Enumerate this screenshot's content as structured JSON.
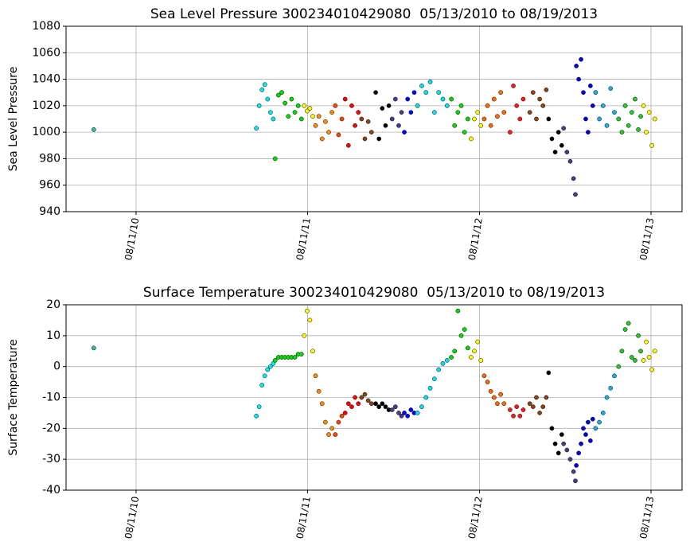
{
  "chart_data": [
    {
      "type": "scatter",
      "title": "Sea Level Pressure 300234010429080  05/13/2010 to 08/19/2013",
      "y_label": "Sea Level Pressure",
      "xlim": [
        "2010-03-15",
        "2013-10-16"
      ],
      "xticks": [
        {
          "value": "2010-08-11",
          "label": "08/11/10"
        },
        {
          "value": "2011-08-11",
          "label": "08/11/11"
        },
        {
          "value": "2012-08-11",
          "label": "08/11/12"
        },
        {
          "value": "2013-08-11",
          "label": "08/11/13"
        }
      ],
      "ylim": [
        940,
        1080
      ],
      "yticks": [
        940,
        960,
        980,
        1000,
        1020,
        1040,
        1060,
        1080
      ],
      "grid": true,
      "series": [
        {
          "color": "#3cb4a0",
          "x": [
            "2010-05-13"
          ],
          "values": [
            1002
          ]
        },
        {
          "color": "#00eef0",
          "x": [
            "2011-04-24",
            "2011-04-30",
            "2011-05-06",
            "2011-05-12",
            "2011-05-18",
            "2011-05-24",
            "2011-05-30"
          ],
          "values": [
            1003,
            1020,
            1032,
            1036,
            1025,
            1015,
            1010
          ]
        },
        {
          "color": "#00dd00",
          "x": [
            "2011-06-03",
            "2011-06-10",
            "2011-06-17",
            "2011-06-24",
            "2011-07-01",
            "2011-07-08",
            "2011-07-15",
            "2011-07-22",
            "2011-07-29"
          ],
          "values": [
            980,
            1028,
            1030,
            1022,
            1012,
            1025,
            1015,
            1020,
            1010
          ]
        },
        {
          "color": "#ffff00",
          "x": [
            "2011-08-04",
            "2011-08-10",
            "2011-08-16",
            "2011-08-22"
          ],
          "values": [
            1020,
            1016,
            1018,
            1012
          ]
        },
        {
          "color": "#ff8c00",
          "x": [
            "2011-08-28",
            "2011-09-04",
            "2011-09-11",
            "2011-09-18",
            "2011-09-25",
            "2011-10-02"
          ],
          "values": [
            1005,
            1012,
            995,
            1008,
            1000,
            1015
          ]
        },
        {
          "color": "#ff4500",
          "x": [
            "2011-10-09",
            "2011-10-16",
            "2011-10-23"
          ],
          "values": [
            1020,
            998,
            1010
          ]
        },
        {
          "color": "#ff0000",
          "x": [
            "2011-10-30",
            "2011-11-06",
            "2011-11-13",
            "2011-11-20",
            "2011-11-27"
          ],
          "values": [
            1025,
            990,
            1020,
            1005,
            1015
          ]
        },
        {
          "color": "#8b4513",
          "x": [
            "2011-12-04",
            "2011-12-11",
            "2011-12-18",
            "2011-12-25"
          ],
          "values": [
            1010,
            995,
            1008,
            1000
          ]
        },
        {
          "color": "#000000",
          "x": [
            "2012-01-03",
            "2012-01-10",
            "2012-01-17",
            "2012-01-24",
            "2012-01-31"
          ],
          "values": [
            1030,
            995,
            1018,
            1005,
            1020
          ]
        },
        {
          "color": "#483d8b",
          "x": [
            "2012-02-07",
            "2012-02-14",
            "2012-02-21",
            "2012-02-27"
          ],
          "values": [
            1010,
            1025,
            1005,
            1015
          ]
        },
        {
          "color": "#0000ff",
          "x": [
            "2012-03-04",
            "2012-03-11",
            "2012-03-18",
            "2012-03-25"
          ],
          "values": [
            1000,
            1025,
            1015,
            1030
          ]
        },
        {
          "color": "#00e5ee",
          "x": [
            "2012-04-01",
            "2012-04-10",
            "2012-04-19",
            "2012-04-28",
            "2012-05-07",
            "2012-05-16",
            "2012-05-25",
            "2012-06-03"
          ],
          "values": [
            1020,
            1035,
            1030,
            1038,
            1015,
            1030,
            1025,
            1020
          ]
        },
        {
          "color": "#00dd00",
          "x": [
            "2012-06-12",
            "2012-06-19",
            "2012-06-26",
            "2012-07-03",
            "2012-07-10",
            "2012-07-17"
          ],
          "values": [
            1025,
            1005,
            1015,
            1020,
            1000,
            1010
          ]
        },
        {
          "color": "#ffff00",
          "x": [
            "2012-07-24",
            "2012-07-31",
            "2012-08-07",
            "2012-08-14"
          ],
          "values": [
            995,
            1010,
            1015,
            1005
          ]
        },
        {
          "color": "#ff6a00",
          "x": [
            "2012-08-21",
            "2012-08-28",
            "2012-09-04",
            "2012-09-11",
            "2012-09-18",
            "2012-09-25",
            "2012-10-02"
          ],
          "values": [
            1010,
            1020,
            1005,
            1025,
            1012,
            1030,
            1015
          ]
        },
        {
          "color": "#ff1a1a",
          "x": [
            "2012-10-15",
            "2012-10-22",
            "2012-10-29",
            "2012-11-05",
            "2012-11-12"
          ],
          "values": [
            1000,
            1035,
            1020,
            1010,
            1025
          ]
        },
        {
          "color": "#8b4513",
          "x": [
            "2012-11-26",
            "2012-12-03",
            "2012-12-10",
            "2012-12-17",
            "2012-12-24",
            "2012-12-31"
          ],
          "values": [
            1015,
            1030,
            1010,
            1025,
            1020,
            1032
          ]
        },
        {
          "color": "#000000",
          "x": [
            "2013-01-05",
            "2013-01-12",
            "2013-01-19",
            "2013-01-26",
            "2013-02-02"
          ],
          "values": [
            1010,
            995,
            985,
            1000,
            990
          ]
        },
        {
          "color": "#483d8b",
          "x": [
            "2013-02-06",
            "2013-02-13",
            "2013-02-20",
            "2013-02-27",
            "2013-03-03"
          ],
          "values": [
            1003,
            985,
            978,
            965,
            953
          ]
        },
        {
          "color": "#0000dd",
          "x": [
            "2013-03-05",
            "2013-03-10",
            "2013-03-15",
            "2013-03-20",
            "2013-03-25",
            "2013-03-30",
            "2013-04-04",
            "2013-04-09"
          ],
          "values": [
            1050,
            1040,
            1055,
            1030,
            1010,
            1000,
            1035,
            1020
          ]
        },
        {
          "color": "#1ab0e0",
          "x": [
            "2013-04-15",
            "2013-04-23",
            "2013-05-01",
            "2013-05-09",
            "2013-05-17",
            "2013-05-25"
          ],
          "values": [
            1030,
            1010,
            1020,
            1005,
            1033,
            1015
          ]
        },
        {
          "color": "#22cc22",
          "x": [
            "2013-06-03",
            "2013-06-10",
            "2013-06-17",
            "2013-06-24",
            "2013-07-01",
            "2013-07-08",
            "2013-07-15",
            "2013-07-20"
          ],
          "values": [
            1010,
            1000,
            1020,
            1005,
            1015,
            1025,
            1002,
            1012
          ]
        },
        {
          "color": "#ffff00",
          "x": [
            "2013-07-26",
            "2013-08-01",
            "2013-08-07",
            "2013-08-13",
            "2013-08-19"
          ],
          "values": [
            1020,
            1000,
            1015,
            990,
            1010
          ]
        }
      ]
    },
    {
      "type": "scatter",
      "title": "Surface Temperature 300234010429080  05/13/2010 to 08/19/2013",
      "y_label": "Surface Temperature",
      "xlim": [
        "2010-03-15",
        "2013-10-16"
      ],
      "xticks": [
        {
          "value": "2010-08-11",
          "label": "08/11/10"
        },
        {
          "value": "2011-08-11",
          "label": "08/11/11"
        },
        {
          "value": "2012-08-11",
          "label": "08/11/12"
        },
        {
          "value": "2013-08-11",
          "label": "08/11/13"
        }
      ],
      "ylim": [
        -40,
        20
      ],
      "yticks": [
        -40,
        -30,
        -20,
        -10,
        0,
        10,
        20
      ],
      "grid": true,
      "series": [
        {
          "color": "#3cb4a0",
          "x": [
            "2010-05-13"
          ],
          "values": [
            6
          ]
        },
        {
          "color": "#00eef0",
          "x": [
            "2011-04-24",
            "2011-04-30",
            "2011-05-06",
            "2011-05-12",
            "2011-05-18",
            "2011-05-24",
            "2011-05-30"
          ],
          "values": [
            -16,
            -13,
            -6,
            -3,
            -1,
            0,
            1
          ]
        },
        {
          "color": "#00dd00",
          "x": [
            "2011-06-03",
            "2011-06-10",
            "2011-06-17",
            "2011-06-24",
            "2011-07-01",
            "2011-07-08",
            "2011-07-15",
            "2011-07-22",
            "2011-07-29"
          ],
          "values": [
            2,
            3,
            3,
            3,
            3,
            3,
            3,
            4,
            4
          ]
        },
        {
          "color": "#ffff00",
          "x": [
            "2011-08-04",
            "2011-08-10",
            "2011-08-16",
            "2011-08-22"
          ],
          "values": [
            10,
            18,
            15,
            5
          ]
        },
        {
          "color": "#ff8c00",
          "x": [
            "2011-08-28",
            "2011-09-04",
            "2011-09-11",
            "2011-09-18",
            "2011-09-25",
            "2011-10-02"
          ],
          "values": [
            -3,
            -8,
            -12,
            -18,
            -22,
            -20
          ]
        },
        {
          "color": "#ff4500",
          "x": [
            "2011-10-09",
            "2011-10-16",
            "2011-10-23"
          ],
          "values": [
            -22,
            -18,
            -16
          ]
        },
        {
          "color": "#ff0000",
          "x": [
            "2011-10-30",
            "2011-11-06",
            "2011-11-13",
            "2011-11-20",
            "2011-11-27"
          ],
          "values": [
            -15,
            -12,
            -13,
            -10,
            -12
          ]
        },
        {
          "color": "#8b4513",
          "x": [
            "2011-12-04",
            "2011-12-11",
            "2011-12-18",
            "2011-12-25"
          ],
          "values": [
            -10,
            -9,
            -11,
            -12
          ]
        },
        {
          "color": "#000000",
          "x": [
            "2012-01-03",
            "2012-01-10",
            "2012-01-17",
            "2012-01-24",
            "2012-01-31"
          ],
          "values": [
            -12,
            -13,
            -12,
            -13,
            -14
          ]
        },
        {
          "color": "#483d8b",
          "x": [
            "2012-02-07",
            "2012-02-14",
            "2012-02-21",
            "2012-02-27"
          ],
          "values": [
            -14,
            -13,
            -15,
            -16
          ]
        },
        {
          "color": "#0000ff",
          "x": [
            "2012-03-04",
            "2012-03-11",
            "2012-03-18",
            "2012-03-25"
          ],
          "values": [
            -15,
            -16,
            -14,
            -15
          ]
        },
        {
          "color": "#00e5ee",
          "x": [
            "2012-04-01",
            "2012-04-10",
            "2012-04-19",
            "2012-04-28",
            "2012-05-07",
            "2012-05-16",
            "2012-05-25",
            "2012-06-03"
          ],
          "values": [
            -15,
            -13,
            -10,
            -7,
            -4,
            -1,
            1,
            2
          ]
        },
        {
          "color": "#00dd00",
          "x": [
            "2012-06-12",
            "2012-06-19",
            "2012-06-26",
            "2012-07-03",
            "2012-07-10",
            "2012-07-17"
          ],
          "values": [
            3,
            5,
            18,
            10,
            12,
            6
          ]
        },
        {
          "color": "#ffff00",
          "x": [
            "2012-07-24",
            "2012-07-31",
            "2012-08-07",
            "2012-08-14"
          ],
          "values": [
            3,
            5,
            8,
            2
          ]
        },
        {
          "color": "#ff6a00",
          "x": [
            "2012-08-21",
            "2012-08-28",
            "2012-09-04",
            "2012-09-11",
            "2012-09-18",
            "2012-09-25",
            "2012-10-02"
          ],
          "values": [
            -3,
            -5,
            -8,
            -10,
            -12,
            -9,
            -12
          ]
        },
        {
          "color": "#ff1a1a",
          "x": [
            "2012-10-15",
            "2012-10-22",
            "2012-10-29",
            "2012-11-05",
            "2012-11-12"
          ],
          "values": [
            -14,
            -16,
            -13,
            -16,
            -14
          ]
        },
        {
          "color": "#8b4513",
          "x": [
            "2012-11-26",
            "2012-12-03",
            "2012-12-10",
            "2012-12-17",
            "2012-12-24",
            "2012-12-31"
          ],
          "values": [
            -12,
            -13,
            -10,
            -15,
            -13,
            -10
          ]
        },
        {
          "color": "#000000",
          "x": [
            "2013-01-05",
            "2013-01-12",
            "2013-01-19",
            "2013-01-26",
            "2013-02-02"
          ],
          "values": [
            -2,
            -20,
            -25,
            -28,
            -22
          ]
        },
        {
          "color": "#483d8b",
          "x": [
            "2013-02-06",
            "2013-02-13",
            "2013-02-20",
            "2013-02-27",
            "2013-03-03"
          ],
          "values": [
            -25,
            -27,
            -30,
            -34,
            -37
          ]
        },
        {
          "color": "#0000dd",
          "x": [
            "2013-03-05",
            "2013-03-10",
            "2013-03-15",
            "2013-03-20",
            "2013-03-25",
            "2013-03-30",
            "2013-04-04",
            "2013-04-09"
          ],
          "values": [
            -32,
            -28,
            -25,
            -20,
            -22,
            -18,
            -24,
            -17
          ]
        },
        {
          "color": "#1ab0e0",
          "x": [
            "2013-04-15",
            "2013-04-23",
            "2013-05-01",
            "2013-05-09",
            "2013-05-17",
            "2013-05-25"
          ],
          "values": [
            -20,
            -18,
            -15,
            -10,
            -7,
            -3
          ]
        },
        {
          "color": "#22cc22",
          "x": [
            "2013-06-03",
            "2013-06-10",
            "2013-06-17",
            "2013-06-24",
            "2013-07-01",
            "2013-07-08",
            "2013-07-15",
            "2013-07-20"
          ],
          "values": [
            0,
            5,
            12,
            14,
            3,
            2,
            10,
            5
          ]
        },
        {
          "color": "#ffff00",
          "x": [
            "2013-07-26",
            "2013-08-01",
            "2013-08-07",
            "2013-08-13",
            "2013-08-19"
          ],
          "values": [
            2,
            8,
            3,
            -1,
            5
          ]
        }
      ]
    }
  ]
}
